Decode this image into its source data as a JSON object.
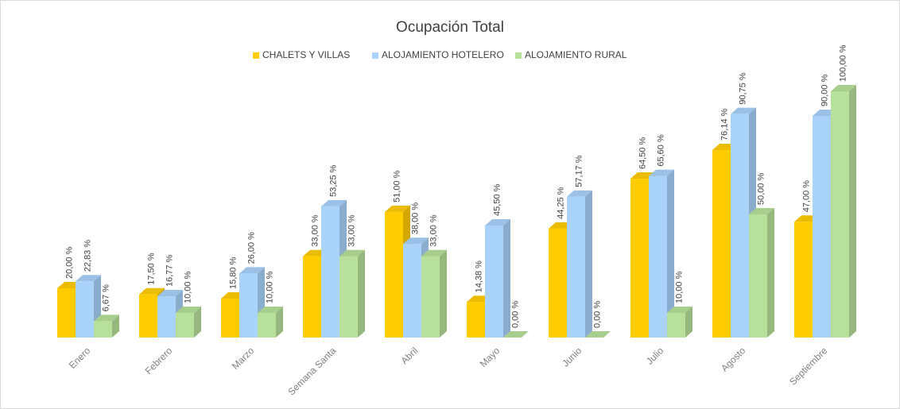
{
  "chart_data": {
    "type": "bar3d",
    "title": "Ocupación Total",
    "categories": [
      "Enero",
      "Febrero",
      "Marzo",
      "Semana Santa",
      "Abril",
      "Mayo",
      "Junio",
      "Julio",
      "Agosto",
      "Septiembre"
    ],
    "series": [
      {
        "name": "CHALETS Y VILLAS",
        "color": "#FFCC00",
        "values": [
          20.0,
          17.5,
          15.8,
          33.0,
          51.0,
          14.38,
          44.25,
          64.5,
          76.14,
          47.0
        ],
        "value_labels": [
          "20,00 %",
          "17,50 %",
          "15,80 %",
          "33,00 %",
          "51,00 %",
          "14,38 %",
          "44,25 %",
          "64,50 %",
          "76,14 %",
          "47,00 %"
        ]
      },
      {
        "name": "ALOJAMIENTO HOTELERO",
        "color": "#A9D3FA",
        "values": [
          22.83,
          16.77,
          26.0,
          53.25,
          38.0,
          45.5,
          57.17,
          65.6,
          90.75,
          90.0
        ],
        "value_labels": [
          "22,83 %",
          "16,77 %",
          "26,00 %",
          "53,25 %",
          "38,00 %",
          "45,50 %",
          "57,17 %",
          "65,60 %",
          "90,75 %",
          "90,00 %"
        ]
      },
      {
        "name": "ALOJAMIENTO RURAL",
        "color": "#B7E09A",
        "values": [
          6.67,
          10.0,
          10.0,
          33.0,
          33.0,
          0.0,
          0.0,
          10.0,
          50.0,
          100.0
        ],
        "value_labels": [
          "6,67 %",
          "10,00 %",
          "10,00 %",
          "33,00 %",
          "33,00 %",
          "0,00 %",
          "0,00 %",
          "10,00 %",
          "50,00 %",
          "100,00 %"
        ]
      }
    ]
  }
}
